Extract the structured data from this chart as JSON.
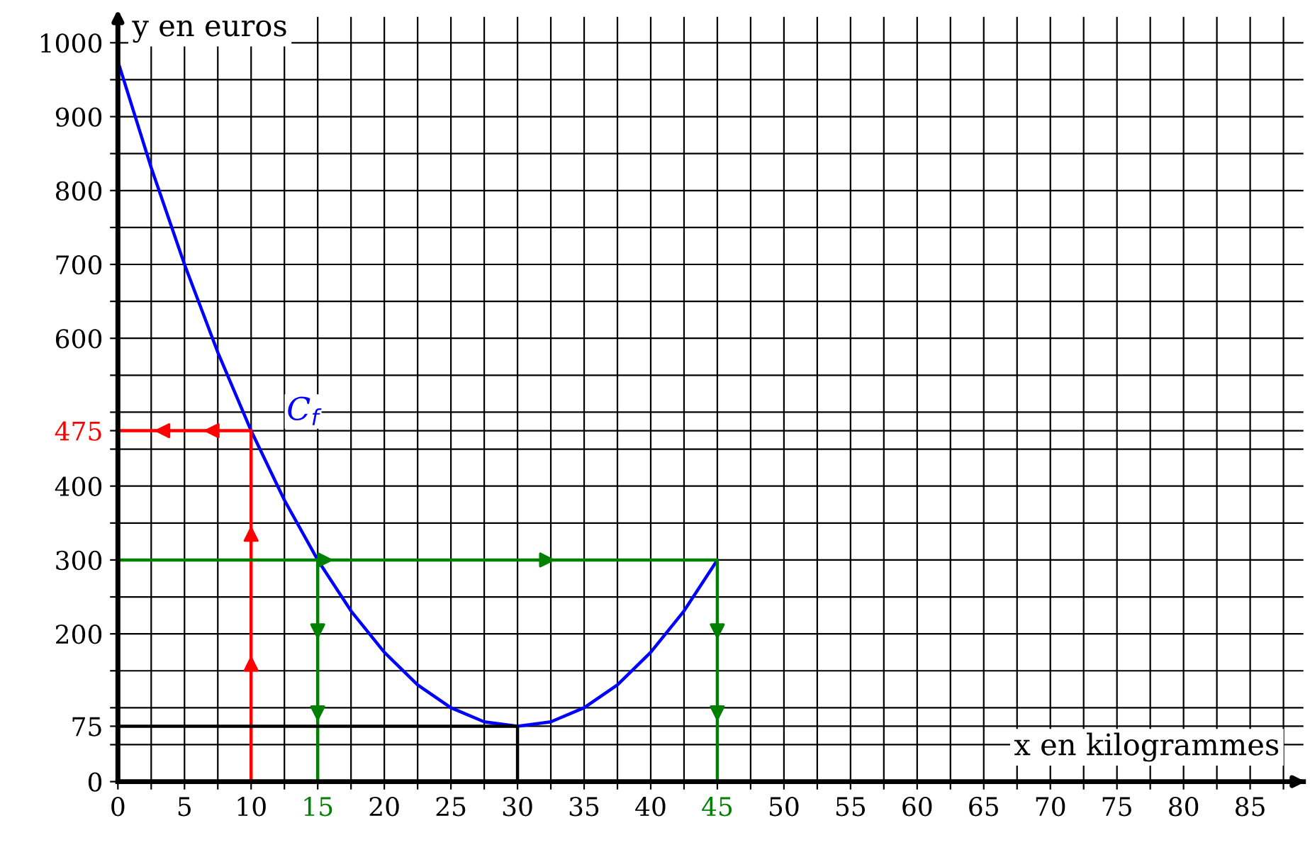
{
  "chart_data": {
    "type": "line",
    "xlabel": "x en kilogrammes",
    "ylabel": "y en euros",
    "xlim": [
      0,
      89
    ],
    "ylim": [
      0,
      1035
    ],
    "xticks": [
      0,
      {
        "value": 2.5,
        "label": null
      },
      5,
      {
        "value": 7.5,
        "label": null
      },
      10,
      {
        "value": 12.5,
        "label": null
      },
      15,
      {
        "value": 17.5,
        "label": null
      },
      20,
      {
        "value": 22.5,
        "label": null
      },
      25,
      {
        "value": 27.5,
        "label": null
      },
      30,
      {
        "value": 32.5,
        "label": null
      },
      35,
      {
        "value": 37.5,
        "label": null
      },
      40,
      {
        "value": 42.5,
        "label": null
      },
      45,
      {
        "value": 47.5,
        "label": null
      },
      50,
      {
        "value": 52.5,
        "label": null
      },
      55,
      {
        "value": 57.5,
        "label": null
      },
      60,
      {
        "value": 62.5,
        "label": null
      },
      65,
      {
        "value": 67.5,
        "label": null
      },
      70,
      {
        "value": 72.5,
        "label": null
      },
      75,
      {
        "value": 77.5,
        "label": null
      },
      80,
      {
        "value": 82.5,
        "label": null
      },
      85,
      {
        "value": 87.5,
        "label": null
      }
    ],
    "yticks": [
      0,
      {
        "value": 50,
        "label": null
      },
      75,
      {
        "value": 100,
        "label": null
      },
      {
        "value": 150,
        "label": null
      },
      200,
      {
        "value": 250,
        "label": null
      },
      300,
      {
        "value": 350,
        "label": null
      },
      400,
      {
        "value": 450,
        "label": null
      },
      475,
      {
        "value": 500,
        "label": null
      },
      {
        "value": 550,
        "label": null
      },
      600,
      {
        "value": 650,
        "label": null
      },
      700,
      {
        "value": 750,
        "label": null
      },
      800,
      {
        "value": 850,
        "label": null
      },
      900,
      {
        "value": 950,
        "label": null
      },
      1000
    ],
    "grid": true,
    "series": [
      {
        "color": "#0000ff",
        "x": [
          0,
          2.5,
          5,
          7.5,
          10,
          12.5,
          15,
          17.5,
          20,
          22.5,
          25,
          27.5,
          30,
          32.5,
          35,
          37.5,
          40,
          42.5,
          45
        ],
        "values": [
          975,
          831,
          700,
          581,
          475,
          381,
          300,
          231,
          175,
          131,
          100,
          81,
          75,
          81,
          100,
          131,
          175,
          231,
          300
        ]
      },
      {
        "color": "#ff0000",
        "x": [
          10,
          10,
          0
        ],
        "values": [
          0,
          475,
          475
        ]
      },
      {
        "color": "#008000",
        "x": [
          0,
          45
        ],
        "values": [
          300,
          300
        ]
      },
      {
        "color": "#008000",
        "x": [
          15,
          15
        ],
        "values": [
          300,
          0
        ]
      },
      {
        "color": "#008000",
        "x": [
          45,
          45
        ],
        "values": [
          300,
          0
        ]
      },
      {
        "color": "#000000",
        "x": [
          0,
          30,
          30
        ],
        "values": [
          75,
          75,
          0
        ]
      }
    ],
    "annotations": [
      "C$_{f}$"
    ]
  }
}
